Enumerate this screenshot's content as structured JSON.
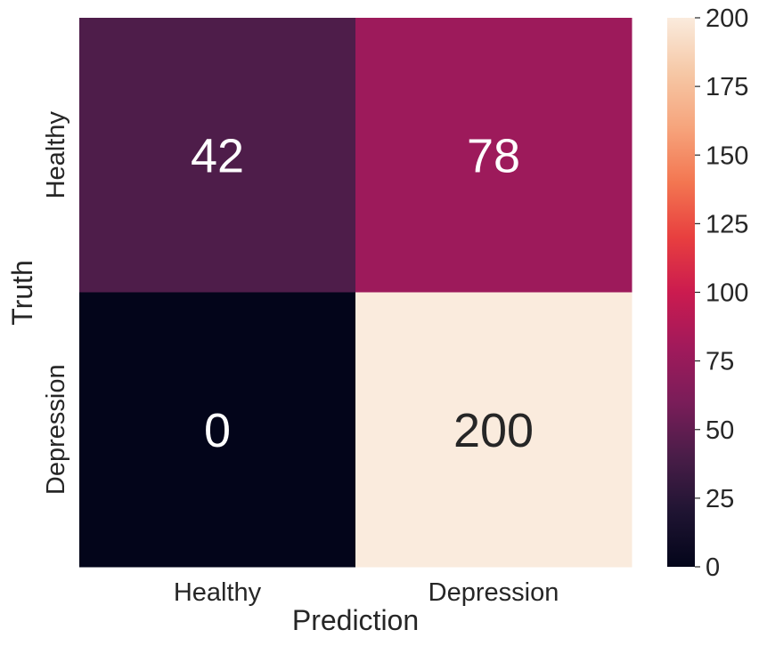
{
  "chart_data": {
    "type": "heatmap",
    "title": "",
    "xlabel": "Prediction",
    "ylabel": "Truth",
    "x_categories": [
      "Healthy",
      "Depression"
    ],
    "y_categories": [
      "Healthy",
      "Depression"
    ],
    "values": [
      [
        42,
        78
      ],
      [
        0,
        200
      ]
    ],
    "colorbar": {
      "min": 0,
      "max": 200,
      "ticks": [
        0,
        25,
        50,
        75,
        100,
        125,
        150,
        175,
        200
      ],
      "colormap": "rocket",
      "stops": [
        "#03051a",
        "#1f1432",
        "#491d48",
        "#7a1d59",
        "#a11a5b",
        "#cb1b4f",
        "#e83f3f",
        "#f37651",
        "#f6a47c",
        "#f6c8a6",
        "#faebdd"
      ]
    },
    "label_colors": {
      "light": "#ffffff",
      "dark": "#262626"
    }
  }
}
